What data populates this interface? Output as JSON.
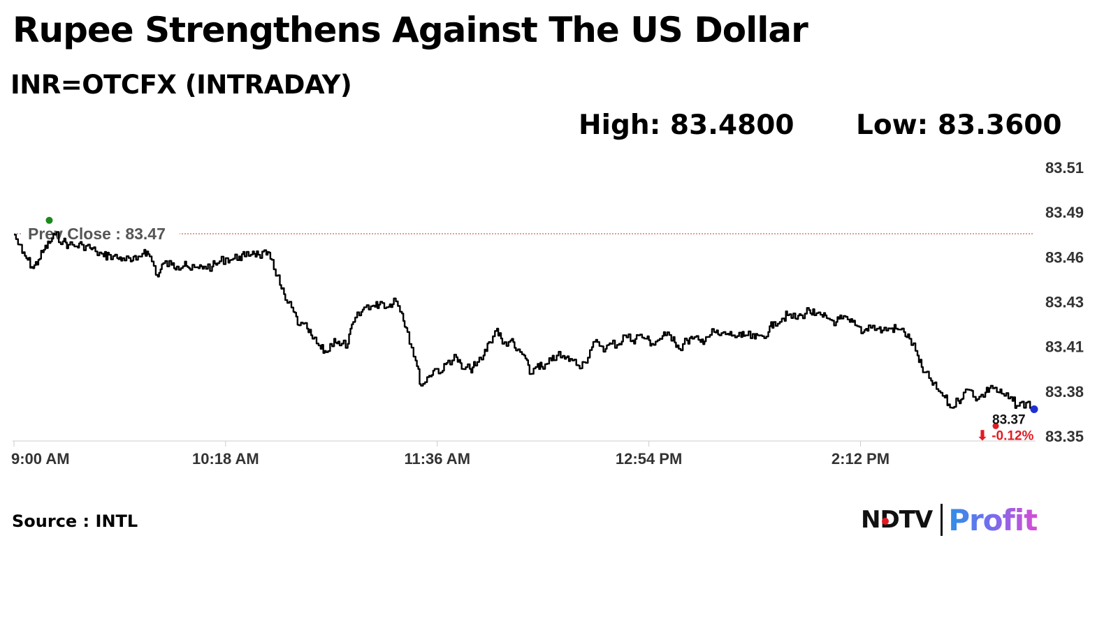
{
  "header": {
    "title": "Rupee Strengthens Against The US Dollar",
    "subtitle": "INR=OTCFX (INTRADAY)",
    "high_text": "High: 83.4800",
    "low_text": "Low: 83.3600"
  },
  "footer": {
    "source": "Source : INTL",
    "logo_left": "NDTV",
    "logo_right": "Profit"
  },
  "colors": {
    "line": "#000000",
    "prev_close": "#c0392b",
    "down": "#e21b22",
    "last_marker": "#1f2fd6",
    "start_marker": "#1a8a1a",
    "axis": "#dddddd"
  },
  "chart_data": {
    "type": "line",
    "title": "INR=OTCFX (INTRADAY)",
    "xlabel": "",
    "ylabel": "",
    "x_ticks": [
      "9:00 AM",
      "10:18 AM",
      "11:36 AM",
      "12:54 PM",
      "2:12 PM"
    ],
    "y_ticks": [
      "83.51",
      "83.49",
      "83.46",
      "83.43",
      "83.41",
      "83.38",
      "83.35"
    ],
    "ylim": [
      83.35,
      83.51
    ],
    "xlim_minutes_after_9am": [
      0,
      376
    ],
    "grid": false,
    "prev_close": {
      "label": "Prev Close : 83.47",
      "value": 83.4705
    },
    "last": {
      "label": "83.37",
      "value": 83.366,
      "change": "-0.12%",
      "change_arrow": "⬇"
    },
    "series": [
      {
        "x": [
          0,
          3,
          5,
          7,
          9,
          11,
          13,
          15,
          18,
          20,
          23,
          25,
          28,
          30,
          33,
          35,
          38,
          40,
          43,
          45,
          48,
          50,
          53,
          55,
          58,
          60,
          63,
          65,
          68,
          70,
          73,
          75,
          78,
          80,
          83,
          85,
          88,
          90,
          93,
          95,
          98,
          100,
          103,
          105,
          108,
          110,
          113,
          115,
          118,
          120,
          123,
          125,
          128,
          130,
          133,
          135,
          138,
          140,
          143,
          145,
          148,
          150,
          153,
          155,
          158,
          160,
          163,
          165,
          168,
          170,
          173,
          175,
          178,
          180,
          183,
          185,
          188,
          190,
          193,
          195,
          198,
          200,
          203,
          205,
          208,
          210,
          213,
          215,
          218,
          220,
          223,
          225,
          228,
          230,
          233,
          235,
          238,
          240,
          243,
          245,
          248,
          250,
          253,
          255,
          258,
          260,
          263,
          265,
          268,
          270,
          273,
          275,
          278,
          280,
          283,
          285,
          288,
          290,
          293,
          295,
          298,
          300,
          303,
          305,
          308,
          310,
          313,
          315,
          318,
          320,
          323,
          325,
          328,
          330,
          333,
          335,
          338,
          340,
          343,
          345,
          348,
          350,
          353,
          355,
          358,
          360,
          363,
          365,
          368,
          370,
          373,
          376
        ],
        "values": [
          83.47,
          83.459,
          83.455,
          83.45,
          83.455,
          83.461,
          83.465,
          83.47,
          83.466,
          83.464,
          83.463,
          83.464,
          83.462,
          83.46,
          83.457,
          83.458,
          83.456,
          83.456,
          83.454,
          83.455,
          83.461,
          83.457,
          83.445,
          83.453,
          83.452,
          83.451,
          83.454,
          83.449,
          83.45,
          83.451,
          83.451,
          83.453,
          83.456,
          83.455,
          83.457,
          83.457,
          83.46,
          83.458,
          83.458,
          83.455,
          83.44,
          83.431,
          83.424,
          83.416,
          83.414,
          83.408,
          83.402,
          83.4,
          83.408,
          83.404,
          83.405,
          83.418,
          83.424,
          83.428,
          83.427,
          83.43,
          83.427,
          83.432,
          83.423,
          83.412,
          83.395,
          83.38,
          83.386,
          83.39,
          83.389,
          83.395,
          83.397,
          83.39,
          83.39,
          83.392,
          83.398,
          83.406,
          83.414,
          83.405,
          83.407,
          83.401,
          83.398,
          83.387,
          83.393,
          83.39,
          83.395,
          83.398,
          83.396,
          83.396,
          83.392,
          83.394,
          83.403,
          83.406,
          83.402,
          83.405,
          83.405,
          83.41,
          83.407,
          83.41,
          83.408,
          83.405,
          83.408,
          83.41,
          83.409,
          83.402,
          83.407,
          83.408,
          83.406,
          83.409,
          83.412,
          83.41,
          83.411,
          83.41,
          83.409,
          83.41,
          83.408,
          83.41,
          83.412,
          83.418,
          83.42,
          83.422,
          83.42,
          83.422,
          83.425,
          83.422,
          83.421,
          83.42,
          83.418,
          83.42,
          83.418,
          83.416,
          83.412,
          83.416,
          83.414,
          83.413,
          83.414,
          83.414,
          83.412,
          83.408,
          83.398,
          83.388,
          83.383,
          83.378,
          83.373,
          83.367,
          83.371,
          83.376,
          83.377,
          83.372,
          83.376,
          83.38,
          83.376,
          83.374,
          83.371,
          83.368,
          83.37,
          83.366
        ]
      }
    ]
  }
}
